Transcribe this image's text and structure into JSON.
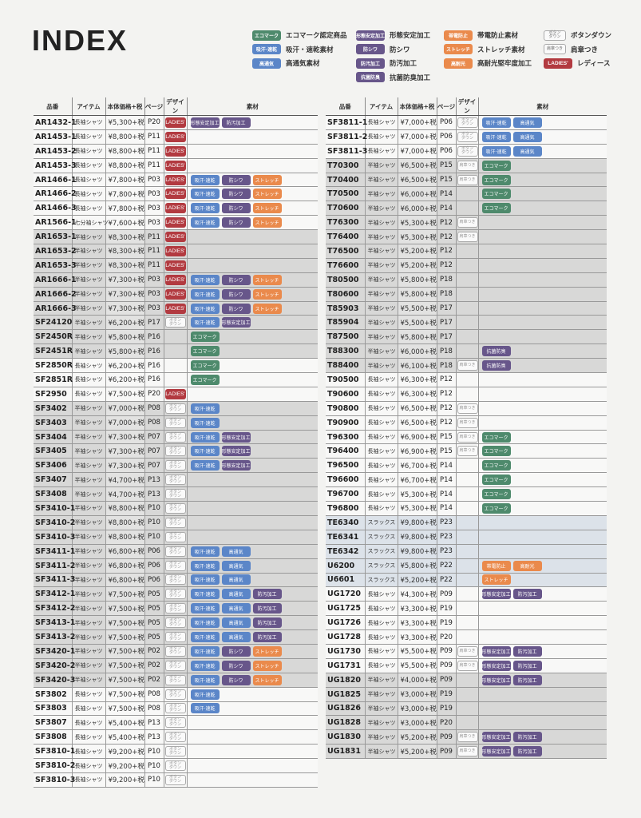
{
  "title": "INDEX",
  "tag_colors": {
    "green": "#4e8a6c",
    "blue": "#5b86c8",
    "purple": "#67568a",
    "orange": "#ea8a4c",
    "red": "#b23a40"
  },
  "tags": {
    "eco": {
      "label": "エコマーク",
      "color": "green",
      "desc": "エコマーク認定商品"
    },
    "kyukan": {
      "label": "吸汗·速乾",
      "color": "blue",
      "desc": "吸汗・速乾素材"
    },
    "kotsuki": {
      "label": "高通気",
      "color": "blue",
      "desc": "高通気素材"
    },
    "keitai": {
      "label": "形態安定加工",
      "color": "purple",
      "desc": "形態安定加工"
    },
    "boshiwa": {
      "label": "防シワ",
      "color": "purple",
      "desc": "防シワ"
    },
    "bosen": {
      "label": "防汚加工",
      "color": "purple",
      "desc": "防汚加工"
    },
    "kokin": {
      "label": "抗菌防臭",
      "color": "purple",
      "desc": "抗菌防臭加工"
    },
    "taiden": {
      "label": "帯電防止",
      "color": "orange",
      "desc": "帯電防止素材"
    },
    "stretch": {
      "label": "ストレッチ",
      "color": "orange",
      "desc": "ストレッチ素材"
    },
    "kotaiko": {
      "label": "高耐光",
      "color": "orange",
      "desc": "高耐光堅牢度加工"
    },
    "button": {
      "label": "ボタン\nダウン",
      "color": "outline",
      "desc": "ボタンダウン"
    },
    "epaulette": {
      "label": "肩章つき",
      "color": "outline",
      "desc": "肩章つき"
    },
    "ladies": {
      "label": "LADIES'",
      "color": "red",
      "desc": "レディース"
    }
  },
  "legend_columns": [
    [
      "eco",
      "kyukan",
      "kotsuki"
    ],
    [
      "keitai",
      "boshiwa",
      "bosen",
      "kokin"
    ],
    [
      "taiden",
      "stretch",
      "kotaiko"
    ],
    [
      "button",
      "epaulette",
      "ladies"
    ]
  ],
  "headers": [
    "品番",
    "アイテム",
    "本体価格+税",
    "ページ",
    "デザイン",
    "素材"
  ],
  "left_table": [
    {
      "shade": "white",
      "rows": [
        [
          "AR1432-1",
          "長袖シャツ",
          "¥5,300+税",
          "P20",
          "ladies",
          [
            "keitai",
            "bosen"
          ]
        ],
        [
          "AR1453-1",
          "長袖シャツ",
          "¥8,800+税",
          "P11",
          "ladies",
          []
        ],
        [
          "AR1453-2",
          "長袖シャツ",
          "¥8,800+税",
          "P11",
          "ladies",
          []
        ],
        [
          "AR1453-3",
          "長袖シャツ",
          "¥8,800+税",
          "P11",
          "ladies",
          []
        ],
        [
          "AR1466-1",
          "長袖シャツ",
          "¥7,800+税",
          "P03",
          "ladies",
          [
            "kyukan",
            "boshiwa",
            "stretch"
          ]
        ],
        [
          "AR1466-2",
          "長袖シャツ",
          "¥7,800+税",
          "P03",
          "ladies",
          [
            "kyukan",
            "boshiwa",
            "stretch"
          ]
        ],
        [
          "AR1466-3",
          "長袖シャツ",
          "¥7,800+税",
          "P03",
          "ladies",
          [
            "kyukan",
            "boshiwa",
            "stretch"
          ]
        ],
        [
          "AR1566-1",
          "七分袖シャツ",
          "¥7,600+税",
          "P03",
          "ladies",
          [
            "kyukan",
            "boshiwa",
            "stretch"
          ]
        ]
      ]
    },
    {
      "shade": "gray",
      "rows": [
        [
          "AR1653-1",
          "半袖シャツ",
          "¥8,300+税",
          "P11",
          "ladies",
          []
        ],
        [
          "AR1653-2",
          "半袖シャツ",
          "¥8,300+税",
          "P11",
          "ladies",
          []
        ],
        [
          "AR1653-3",
          "半袖シャツ",
          "¥8,300+税",
          "P11",
          "ladies",
          []
        ],
        [
          "AR1666-1",
          "半袖シャツ",
          "¥7,300+税",
          "P03",
          "ladies",
          [
            "kyukan",
            "boshiwa",
            "stretch"
          ]
        ],
        [
          "AR1666-2",
          "半袖シャツ",
          "¥7,300+税",
          "P03",
          "ladies",
          [
            "kyukan",
            "boshiwa",
            "stretch"
          ]
        ],
        [
          "AR1666-3",
          "半袖シャツ",
          "¥7,300+税",
          "P03",
          "ladies",
          [
            "kyukan",
            "boshiwa",
            "stretch"
          ]
        ],
        [
          "SF24120",
          "半袖シャツ",
          "¥6,200+税",
          "P17",
          "button",
          [
            "kyukan",
            "keitai"
          ]
        ],
        [
          "SF2450R",
          "半袖シャツ",
          "¥5,800+税",
          "P16",
          "",
          [
            "eco"
          ]
        ],
        [
          "SF2451R",
          "半袖シャツ",
          "¥5,800+税",
          "P16",
          "",
          [
            "eco"
          ]
        ]
      ]
    },
    {
      "shade": "white",
      "rows": [
        [
          "SF2850R",
          "長袖シャツ",
          "¥6,200+税",
          "P16",
          "",
          [
            "eco"
          ]
        ],
        [
          "SF2851R",
          "長袖シャツ",
          "¥6,200+税",
          "P16",
          "",
          [
            "eco"
          ]
        ],
        [
          "SF2950",
          "長袖シャツ",
          "¥7,500+税",
          "P20",
          "ladies",
          []
        ]
      ]
    },
    {
      "shade": "gray",
      "rows": [
        [
          "SF3402",
          "半袖シャツ",
          "¥7,000+税",
          "P08",
          "button",
          [
            "kyukan"
          ]
        ],
        [
          "SF3403",
          "半袖シャツ",
          "¥7,000+税",
          "P08",
          "button",
          [
            "kyukan"
          ]
        ],
        [
          "SF3404",
          "半袖シャツ",
          "¥7,300+税",
          "P07",
          "button",
          [
            "kyukan",
            "keitai"
          ]
        ],
        [
          "SF3405",
          "半袖シャツ",
          "¥7,300+税",
          "P07",
          "button",
          [
            "kyukan",
            "keitai"
          ]
        ],
        [
          "SF3406",
          "半袖シャツ",
          "¥7,300+税",
          "P07",
          "button",
          [
            "kyukan",
            "keitai"
          ]
        ],
        [
          "SF3407",
          "半袖シャツ",
          "¥4,700+税",
          "P13",
          "button",
          []
        ],
        [
          "SF3408",
          "半袖シャツ",
          "¥4,700+税",
          "P13",
          "button",
          []
        ],
        [
          "SF3410-1",
          "半袖シャツ",
          "¥8,800+税",
          "P10",
          "button",
          []
        ],
        [
          "SF3410-2",
          "半袖シャツ",
          "¥8,800+税",
          "P10",
          "button",
          []
        ],
        [
          "SF3410-3",
          "半袖シャツ",
          "¥8,800+税",
          "P10",
          "button",
          []
        ],
        [
          "SF3411-1",
          "半袖シャツ",
          "¥6,800+税",
          "P06",
          "button",
          [
            "kyukan",
            "kotsuki"
          ]
        ],
        [
          "SF3411-2",
          "半袖シャツ",
          "¥6,800+税",
          "P06",
          "button",
          [
            "kyukan",
            "kotsuki"
          ]
        ],
        [
          "SF3411-3",
          "半袖シャツ",
          "¥6,800+税",
          "P06",
          "button",
          [
            "kyukan",
            "kotsuki"
          ]
        ],
        [
          "SF3412-1",
          "半袖シャツ",
          "¥7,500+税",
          "P05",
          "button",
          [
            "kyukan",
            "kotsuki",
            "bosen"
          ]
        ],
        [
          "SF3412-2",
          "半袖シャツ",
          "¥7,500+税",
          "P05",
          "button",
          [
            "kyukan",
            "kotsuki",
            "bosen"
          ]
        ],
        [
          "SF3413-1",
          "半袖シャツ",
          "¥7,500+税",
          "P05",
          "button",
          [
            "kyukan",
            "kotsuki",
            "bosen"
          ]
        ],
        [
          "SF3413-2",
          "半袖シャツ",
          "¥7,500+税",
          "P05",
          "button",
          [
            "kyukan",
            "kotsuki",
            "bosen"
          ]
        ],
        [
          "SF3420-1",
          "半袖シャツ",
          "¥7,500+税",
          "P02",
          "button",
          [
            "kyukan",
            "boshiwa",
            "stretch"
          ]
        ],
        [
          "SF3420-2",
          "半袖シャツ",
          "¥7,500+税",
          "P02",
          "button",
          [
            "kyukan",
            "boshiwa",
            "stretch"
          ]
        ],
        [
          "SF3420-3",
          "半袖シャツ",
          "¥7,500+税",
          "P02",
          "button",
          [
            "kyukan",
            "boshiwa",
            "stretch"
          ]
        ]
      ]
    },
    {
      "shade": "white",
      "rows": [
        [
          "SF3802",
          "長袖シャツ",
          "¥7,500+税",
          "P08",
          "button",
          [
            "kyukan"
          ]
        ],
        [
          "SF3803",
          "長袖シャツ",
          "¥7,500+税",
          "P08",
          "button",
          [
            "kyukan"
          ]
        ],
        [
          "SF3807",
          "長袖シャツ",
          "¥5,400+税",
          "P13",
          "button",
          []
        ],
        [
          "SF3808",
          "長袖シャツ",
          "¥5,400+税",
          "P13",
          "button",
          []
        ],
        [
          "SF3810-1",
          "長袖シャツ",
          "¥9,200+税",
          "P10",
          "button",
          []
        ],
        [
          "SF3810-2",
          "長袖シャツ",
          "¥9,200+税",
          "P10",
          "button",
          []
        ],
        [
          "SF3810-3",
          "長袖シャツ",
          "¥9,200+税",
          "P10",
          "button",
          []
        ]
      ]
    }
  ],
  "right_table": [
    {
      "shade": "white",
      "rows": [
        [
          "SF3811-1",
          "長袖シャツ",
          "¥7,000+税",
          "P06",
          "button",
          [
            "kyukan",
            "kotsuki"
          ]
        ],
        [
          "SF3811-2",
          "長袖シャツ",
          "¥7,000+税",
          "P06",
          "button",
          [
            "kyukan",
            "kotsuki"
          ]
        ],
        [
          "SF3811-3",
          "長袖シャツ",
          "¥7,000+税",
          "P06",
          "button",
          [
            "kyukan",
            "kotsuki"
          ]
        ]
      ]
    },
    {
      "shade": "gray",
      "rows": [
        [
          "T70300",
          "半袖シャツ",
          "¥6,500+税",
          "P15",
          "epaulette",
          [
            "eco"
          ]
        ],
        [
          "T70400",
          "半袖シャツ",
          "¥6,500+税",
          "P15",
          "epaulette",
          [
            "eco"
          ]
        ],
        [
          "T70500",
          "半袖シャツ",
          "¥6,000+税",
          "P14",
          "",
          [
            "eco"
          ]
        ],
        [
          "T70600",
          "半袖シャツ",
          "¥6,000+税",
          "P14",
          "",
          [
            "eco"
          ]
        ],
        [
          "T76300",
          "半袖シャツ",
          "¥5,300+税",
          "P12",
          "epaulette",
          []
        ],
        [
          "T76400",
          "半袖シャツ",
          "¥5,300+税",
          "P12",
          "epaulette",
          []
        ],
        [
          "T76500",
          "半袖シャツ",
          "¥5,200+税",
          "P12",
          "",
          []
        ],
        [
          "T76600",
          "半袖シャツ",
          "¥5,200+税",
          "P12",
          "",
          []
        ],
        [
          "T80500",
          "半袖シャツ",
          "¥5,800+税",
          "P18",
          "",
          []
        ],
        [
          "T80600",
          "半袖シャツ",
          "¥5,800+税",
          "P18",
          "",
          []
        ],
        [
          "T85903",
          "半袖シャツ",
          "¥5,500+税",
          "P17",
          "",
          []
        ],
        [
          "T85904",
          "半袖シャツ",
          "¥5,500+税",
          "P17",
          "",
          []
        ],
        [
          "T87500",
          "半袖シャツ",
          "¥5,800+税",
          "P17",
          "",
          []
        ],
        [
          "T88300",
          "半袖シャツ",
          "¥6,000+税",
          "P18",
          "",
          [
            "kokin"
          ]
        ],
        [
          "T88400",
          "半袖シャツ",
          "¥6,100+税",
          "P18",
          "epaulette",
          [
            "kokin"
          ]
        ]
      ]
    },
    {
      "shade": "white",
      "rows": [
        [
          "T90500",
          "長袖シャツ",
          "¥6,300+税",
          "P12",
          "",
          []
        ],
        [
          "T90600",
          "長袖シャツ",
          "¥6,300+税",
          "P12",
          "",
          []
        ],
        [
          "T90800",
          "長袖シャツ",
          "¥6,500+税",
          "P12",
          "epaulette",
          []
        ],
        [
          "T90900",
          "長袖シャツ",
          "¥6,500+税",
          "P12",
          "epaulette",
          []
        ],
        [
          "T96300",
          "長袖シャツ",
          "¥6,900+税",
          "P15",
          "epaulette",
          [
            "eco"
          ]
        ],
        [
          "T96400",
          "長袖シャツ",
          "¥6,900+税",
          "P15",
          "epaulette",
          [
            "eco"
          ]
        ],
        [
          "T96500",
          "長袖シャツ",
          "¥6,700+税",
          "P14",
          "",
          [
            "eco"
          ]
        ],
        [
          "T96600",
          "長袖シャツ",
          "¥6,700+税",
          "P14",
          "",
          [
            "eco"
          ]
        ],
        [
          "T96700",
          "長袖シャツ",
          "¥5,300+税",
          "P14",
          "",
          [
            "eco"
          ]
        ],
        [
          "T96800",
          "長袖シャツ",
          "¥5,300+税",
          "P14",
          "",
          [
            "eco"
          ]
        ]
      ]
    },
    {
      "shade": "blue",
      "rows": [
        [
          "TE6340",
          "スラックス",
          "¥9,800+税",
          "P23",
          "",
          []
        ],
        [
          "TE6341",
          "スラックス",
          "¥9,800+税",
          "P23",
          "",
          []
        ],
        [
          "TE6342",
          "スラックス",
          "¥9,800+税",
          "P23",
          "",
          []
        ],
        [
          "U6200",
          "スラックス",
          "¥5,800+税",
          "P22",
          "",
          [
            "taiden",
            "kotaiko"
          ]
        ],
        [
          "U6601",
          "スラックス",
          "¥5,200+税",
          "P22",
          "",
          [
            "stretch"
          ]
        ]
      ]
    },
    {
      "shade": "white",
      "rows": [
        [
          "UG1720",
          "長袖シャツ",
          "¥4,300+税",
          "P09",
          "",
          [
            "keitai",
            "bosen"
          ]
        ],
        [
          "UG1725",
          "長袖シャツ",
          "¥3,300+税",
          "P19",
          "",
          []
        ],
        [
          "UG1726",
          "長袖シャツ",
          "¥3,300+税",
          "P19",
          "",
          []
        ],
        [
          "UG1728",
          "長袖シャツ",
          "¥3,300+税",
          "P20",
          "",
          []
        ],
        [
          "UG1730",
          "長袖シャツ",
          "¥5,500+税",
          "P09",
          "epaulette",
          [
            "keitai",
            "bosen"
          ]
        ],
        [
          "UG1731",
          "長袖シャツ",
          "¥5,500+税",
          "P09",
          "epaulette",
          [
            "keitai",
            "bosen"
          ]
        ]
      ]
    },
    {
      "shade": "gray",
      "rows": [
        [
          "UG1820",
          "半袖シャツ",
          "¥4,000+税",
          "P09",
          "",
          [
            "keitai",
            "bosen"
          ]
        ],
        [
          "UG1825",
          "半袖シャツ",
          "¥3,000+税",
          "P19",
          "",
          []
        ],
        [
          "UG1826",
          "半袖シャツ",
          "¥3,000+税",
          "P19",
          "",
          []
        ],
        [
          "UG1828",
          "半袖シャツ",
          "¥3,000+税",
          "P20",
          "",
          []
        ],
        [
          "UG1830",
          "半袖シャツ",
          "¥5,200+税",
          "P09",
          "epaulette",
          [
            "keitai",
            "bosen"
          ]
        ],
        [
          "UG1831",
          "半袖シャツ",
          "¥5,200+税",
          "P09",
          "epaulette",
          [
            "keitai",
            "bosen"
          ]
        ]
      ]
    }
  ]
}
